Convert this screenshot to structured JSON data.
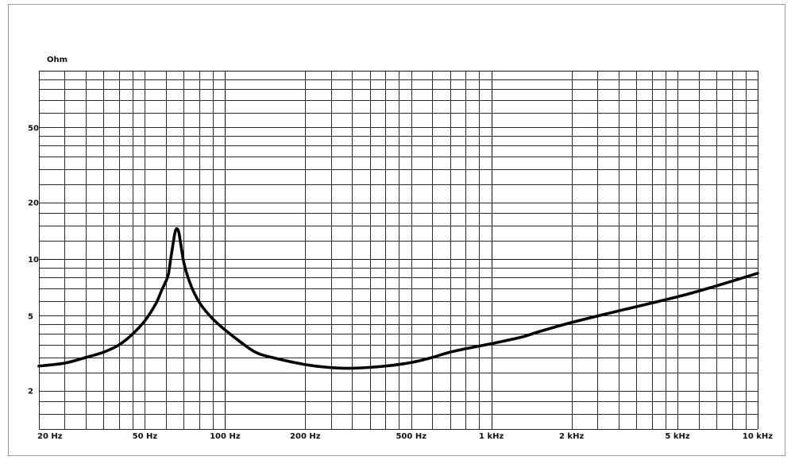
{
  "chart_data": {
    "type": "line",
    "title": "",
    "xlabel": "",
    "ylabel": "Ohm",
    "x_scale": "log",
    "y_scale": "log",
    "xlim": [
      20,
      10000
    ],
    "ylim": [
      1.25,
      100
    ],
    "grid": true,
    "legend": "none",
    "x_tick_values": [
      20,
      50,
      100,
      200,
      500,
      1000,
      2000,
      5000,
      10000
    ],
    "x_tick_labels": [
      "20 Hz",
      "50 Hz",
      "100 Hz",
      "200 Hz",
      "500 Hz",
      "1 kHz",
      "2 kHz",
      "5 kHz",
      "10 kHz"
    ],
    "y_tick_values": [
      2,
      5,
      10,
      20,
      50
    ],
    "y_tick_labels": [
      "2",
      "5",
      "10",
      "20",
      "50"
    ],
    "series": [
      {
        "color": "#000000",
        "x": [
          20,
          25,
          30,
          35,
          40,
          45,
          50,
          55,
          58,
          61,
          62.5,
          64,
          65,
          66,
          67,
          68,
          70,
          73,
          77,
          82,
          90,
          100,
          115,
          130,
          150,
          200,
          250,
          300,
          400,
          500,
          600,
          700,
          900,
          1000,
          1300,
          1500,
          2000,
          3000,
          5000,
          7000,
          10000
        ],
        "y": [
          2.7,
          2.8,
          3.0,
          3.2,
          3.5,
          4.0,
          4.7,
          5.8,
          6.9,
          8.1,
          10.0,
          12.4,
          14.0,
          14.5,
          13.9,
          12.3,
          9.6,
          7.8,
          6.5,
          5.6,
          4.8,
          4.2,
          3.6,
          3.2,
          3.0,
          2.75,
          2.65,
          2.63,
          2.7,
          2.82,
          3.0,
          3.2,
          3.45,
          3.55,
          3.85,
          4.1,
          4.6,
          5.3,
          6.3,
          7.2,
          8.4
        ]
      }
    ]
  }
}
